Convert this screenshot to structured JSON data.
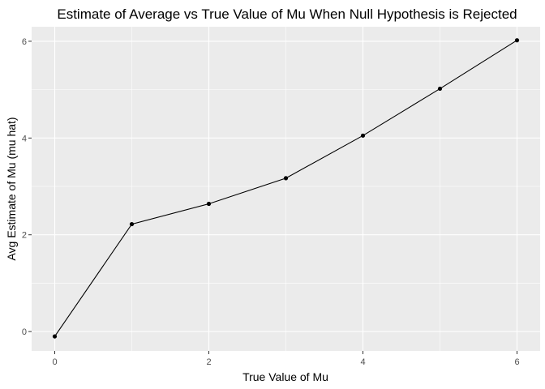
{
  "chart_data": {
    "type": "line",
    "title": "Estimate of Average vs True Value of Mu When Null Hypothesis is Rejected",
    "xlabel": "True Value of Mu",
    "ylabel": "Avg Estimate of Mu (mu hat)",
    "x_ticks": [
      "0",
      "2",
      "4",
      "6"
    ],
    "y_ticks": [
      "0",
      "2",
      "4",
      "6"
    ],
    "xlim": [
      -0.3,
      6.3
    ],
    "ylim": [
      -0.4,
      6.3
    ],
    "grid": true,
    "series": [
      {
        "x": [
          0,
          1,
          2,
          3,
          4,
          5,
          6
        ],
        "values": [
          -0.1,
          2.22,
          2.64,
          3.17,
          4.05,
          5.02,
          6.02
        ]
      }
    ],
    "colors": {
      "panel": "#ebebeb",
      "grid_major": "#ffffff",
      "line": "#000000",
      "point": "#000000",
      "tick_text": "#4d4d4d",
      "tick_mark": "#333333"
    }
  }
}
